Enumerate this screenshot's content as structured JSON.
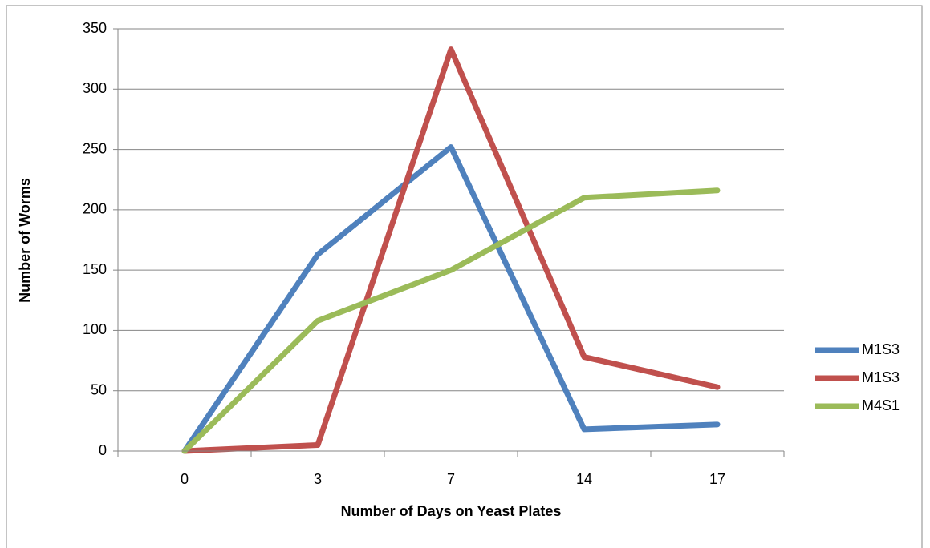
{
  "chart_data": {
    "type": "line",
    "xlabel": "Number of Days on Yeast Plates",
    "ylabel": "Number of Worms",
    "categories": [
      "0",
      "3",
      "7",
      "14",
      "17"
    ],
    "series": [
      {
        "name": "M1S3",
        "color": "#4f81bd",
        "values": [
          0,
          163,
          252,
          18,
          22
        ]
      },
      {
        "name": "M1S3",
        "color": "#c0504d",
        "values": [
          0,
          5,
          333,
          78,
          53
        ]
      },
      {
        "name": "M4S1",
        "color": "#9bbb59",
        "values": [
          0,
          108,
          150,
          210,
          216
        ]
      }
    ],
    "ylim": [
      0,
      350
    ],
    "yticks": [
      0,
      50,
      100,
      150,
      200,
      250,
      300,
      350
    ],
    "grid": true,
    "legend": "right"
  }
}
